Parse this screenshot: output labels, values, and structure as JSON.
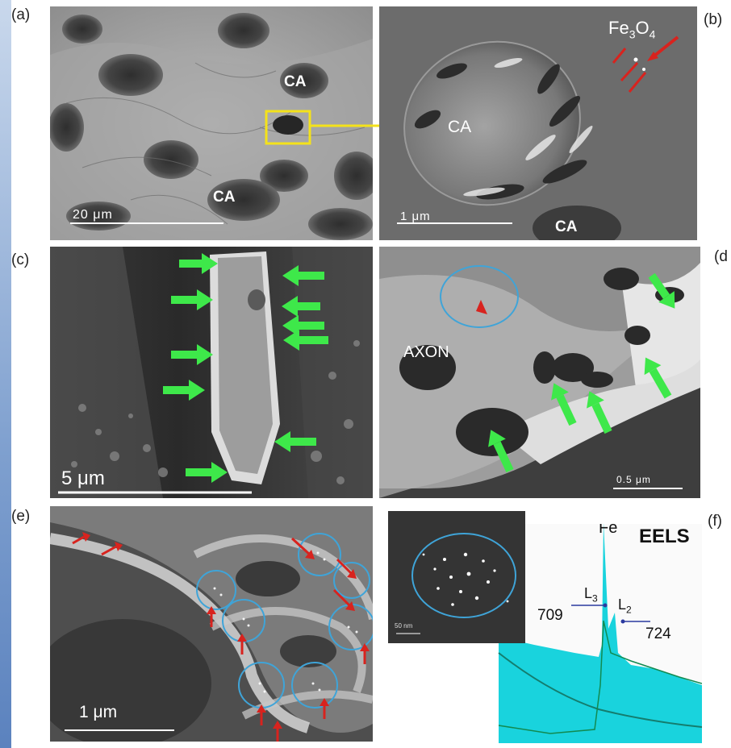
{
  "panels": {
    "a": {
      "label": "(a)",
      "ca_labels": [
        "CA",
        "CA"
      ],
      "scale_bar": "20 μm"
    },
    "b": {
      "label": "(b)",
      "particle_label": "Fe",
      "particle_sub1": "3",
      "particle_mid": "O",
      "particle_sub2": "4",
      "ca_labels": [
        "CA",
        "CA"
      ],
      "scale_bar": "1 μm"
    },
    "c": {
      "label": "(c)",
      "scale_bar": "5 μm"
    },
    "d": {
      "label": "(d",
      "axon_label": "AXON",
      "scale_bar": "0.5 μm"
    },
    "e": {
      "label": "(e)",
      "scale_bar": "1 μm"
    },
    "f": {
      "label": "(f)",
      "inset_scale": "50 nm",
      "eels_title": "EELS",
      "element_label": "Fe",
      "l3_main": "L",
      "l3_sub": "3",
      "l2_main": "L",
      "l2_sub": "2",
      "l3_value": "709",
      "l2_value": "724"
    }
  },
  "colors": {
    "arrow_green": "#3ee84a",
    "arrow_red": "#d8231e",
    "circle_blue": "#3fa4d8",
    "highlight_yellow": "#f4e21a",
    "eels_fill": "#19d3dd"
  }
}
